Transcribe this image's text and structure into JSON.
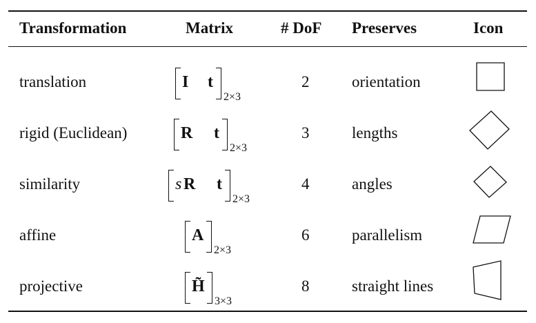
{
  "table": {
    "headers": {
      "transformation": "Transformation",
      "matrix": "Matrix",
      "dof": "# DoF",
      "preserves": "Preserves",
      "icon": "Icon"
    },
    "rows": [
      {
        "name": "translation",
        "m1": "I",
        "m2": "t",
        "sub": "2×3",
        "dof": "2",
        "preserves": "orientation",
        "icon": "square-icon"
      },
      {
        "name": "rigid (Euclidean)",
        "m1": "R",
        "m2": "t",
        "sub": "2×3",
        "dof": "3",
        "preserves": "lengths",
        "icon": "rotated-square-icon"
      },
      {
        "name": "similarity",
        "m0": "s",
        "m1": "R",
        "m2": "t",
        "sub": "2×3",
        "dof": "4",
        "preserves": "angles",
        "icon": "small-rotated-square-icon"
      },
      {
        "name": "affine",
        "m1": "A",
        "sub": "2×3",
        "dof": "6",
        "preserves": "parallelism",
        "icon": "parallelogram-icon"
      },
      {
        "name": "projective",
        "m1": "H̃",
        "sub": "3×3",
        "dof": "8",
        "preserves": "straight lines",
        "icon": "trapezoid-icon"
      }
    ]
  }
}
